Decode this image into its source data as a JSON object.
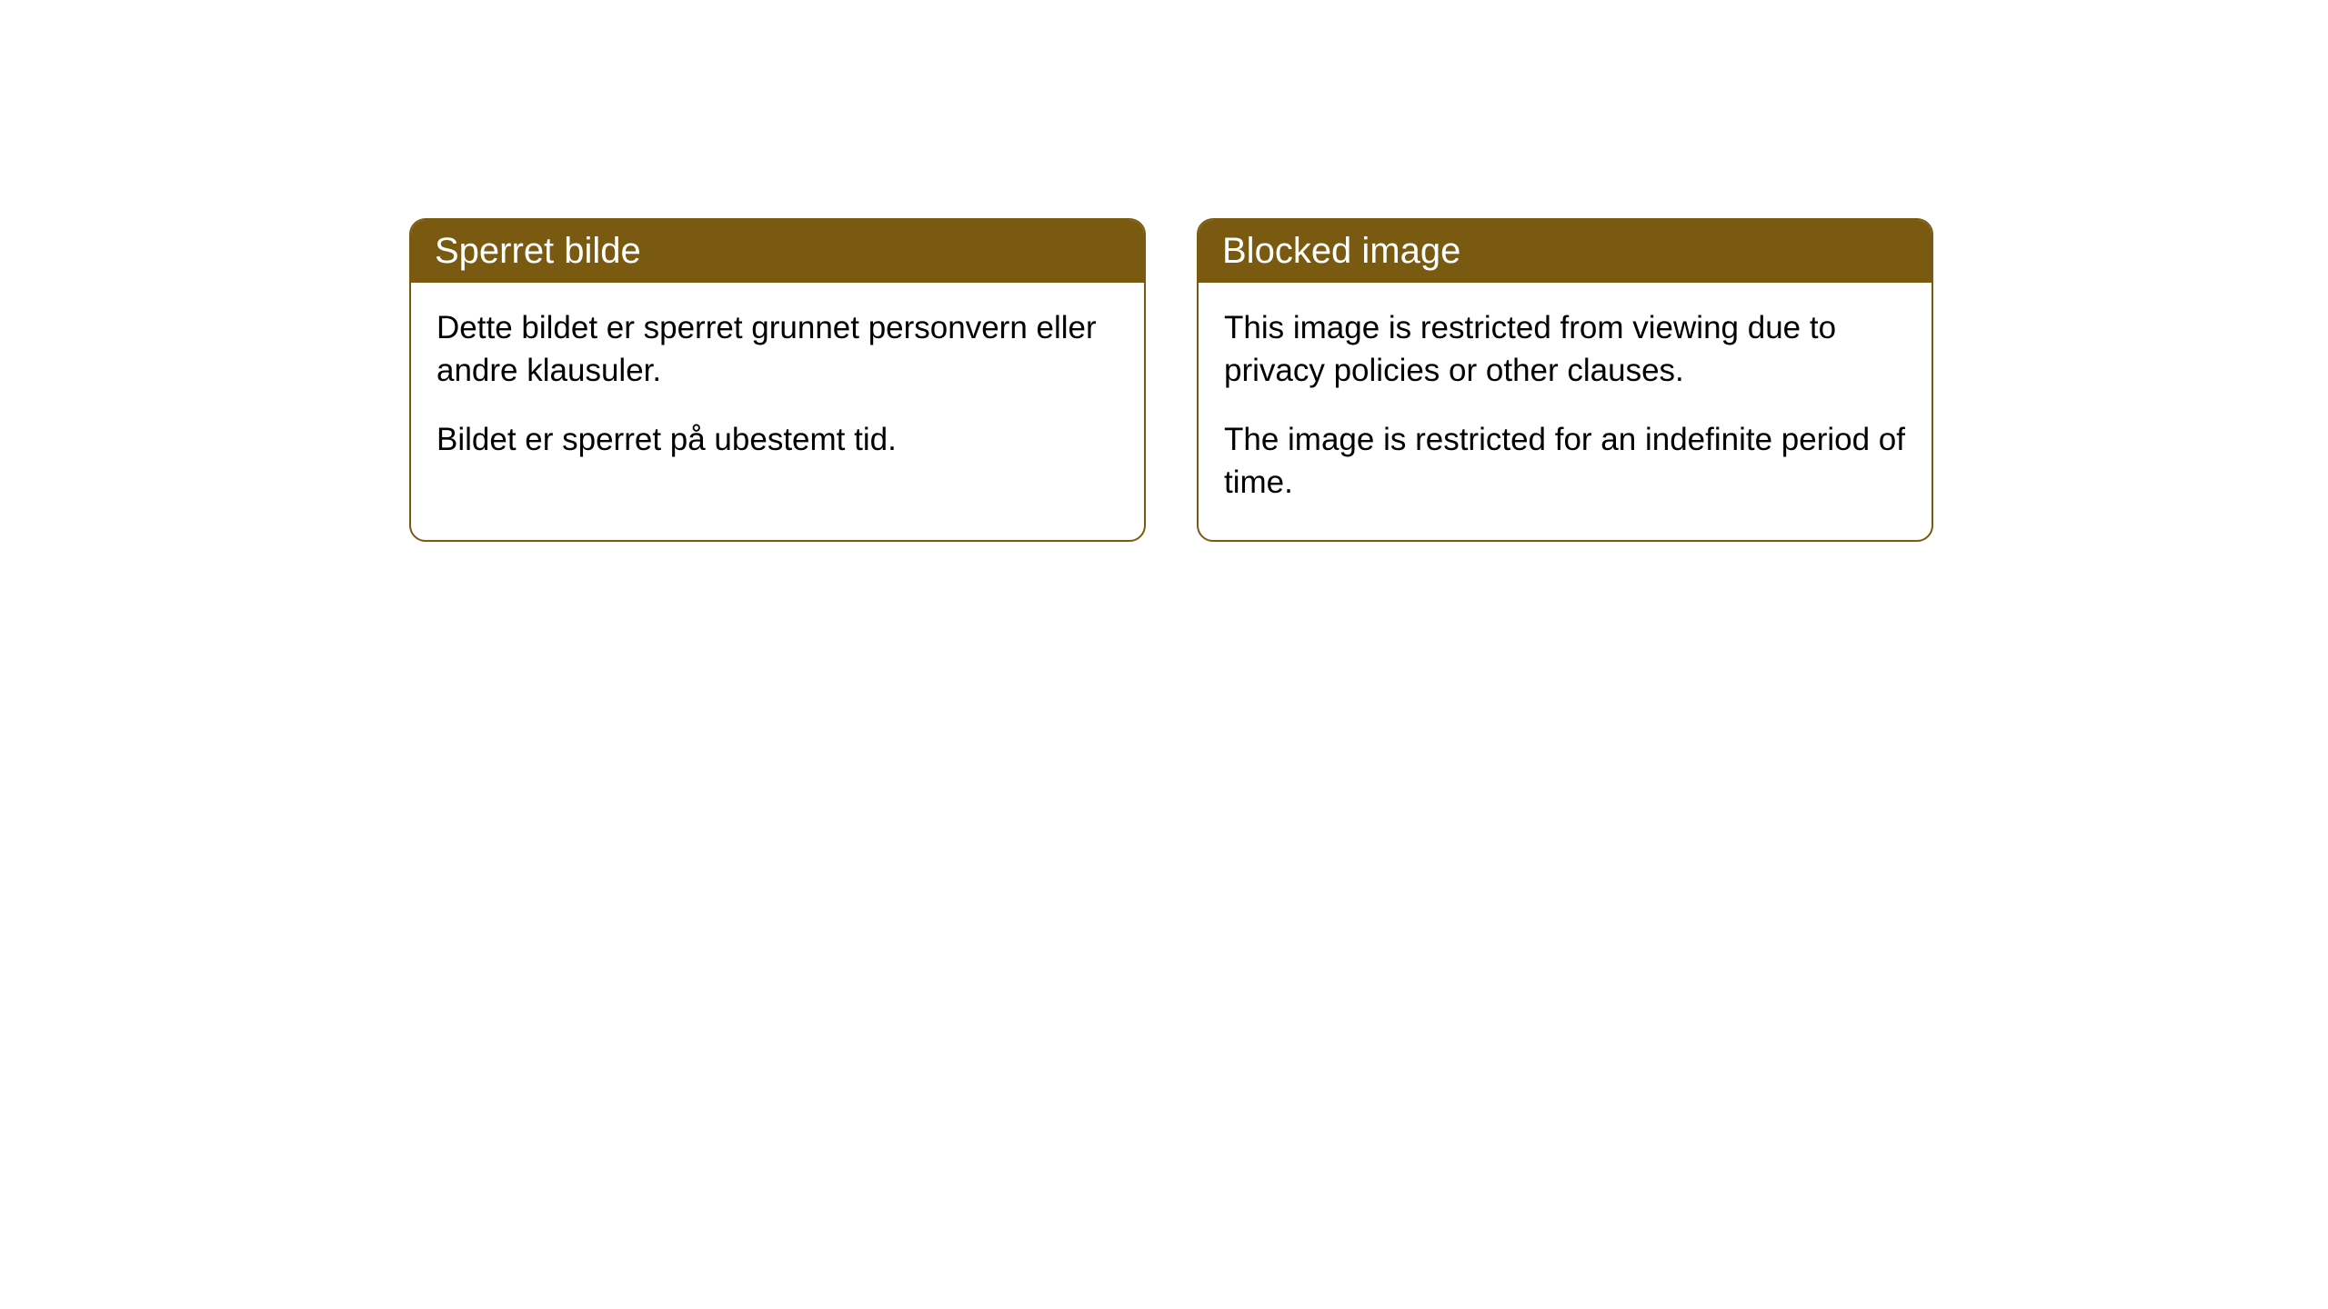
{
  "cards": [
    {
      "title": "Sperret bilde",
      "paragraph1": "Dette bildet er sperret grunnet personvern eller andre klausuler.",
      "paragraph2": "Bildet er sperret på ubestemt tid."
    },
    {
      "title": "Blocked image",
      "paragraph1": "This image is restricted from viewing due to privacy policies or other clauses.",
      "paragraph2": "The image is restricted for an indefinite period of time."
    }
  ],
  "styling": {
    "header_background_color": "#7a5a10",
    "header_text_color": "#ffffff",
    "border_color": "#7a5a10",
    "body_text_color": "#000000",
    "background_color": "#ffffff",
    "border_radius": 18,
    "header_fontsize": 40,
    "body_fontsize": 35
  }
}
